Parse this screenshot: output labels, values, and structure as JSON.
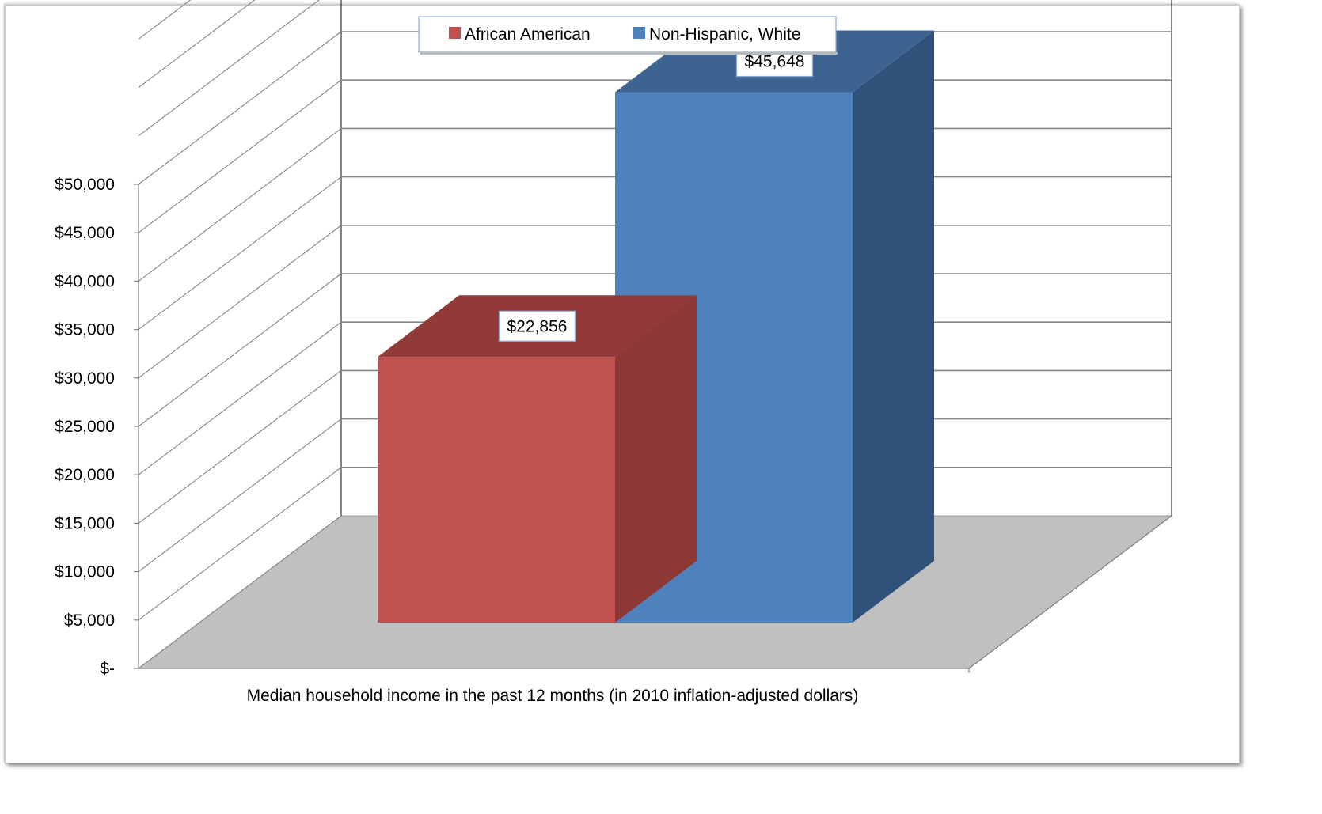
{
  "chart_data": {
    "type": "bar",
    "style": "3d-clustered-column",
    "categories": [
      "Median household income in the past 12 months (in 2010 inflation-adjusted dollars)"
    ],
    "series": [
      {
        "name": "African American",
        "values": [
          22856
        ],
        "data_label": "$22,856",
        "color": "#C0504D",
        "top_color": "#923A38",
        "side_color": "#8E3836"
      },
      {
        "name": "Non-Hispanic, White",
        "values": [
          45648
        ],
        "data_label": "$45,648",
        "color": "#4F81BD",
        "top_color": "#3D6391",
        "side_color": "#30527A"
      }
    ],
    "xlabel": "Median household income in the past 12 months (in 2010 inflation-adjusted dollars)",
    "ylabel": "",
    "ylim": [
      0,
      50000
    ],
    "y_tick_values": [
      0,
      5000,
      10000,
      15000,
      20000,
      25000,
      30000,
      35000,
      40000,
      45000,
      50000
    ],
    "y_tick_labels": [
      "$-",
      "$5,000",
      "$10,000",
      "$15,000",
      "$20,000",
      "$25,000",
      "$30,000",
      "$35,000",
      "$40,000",
      "$45,000",
      "$50,000"
    ],
    "grid": true,
    "legend_position": "top-center",
    "floor_color": "#C0C0C0",
    "grid_color": "#868686"
  }
}
